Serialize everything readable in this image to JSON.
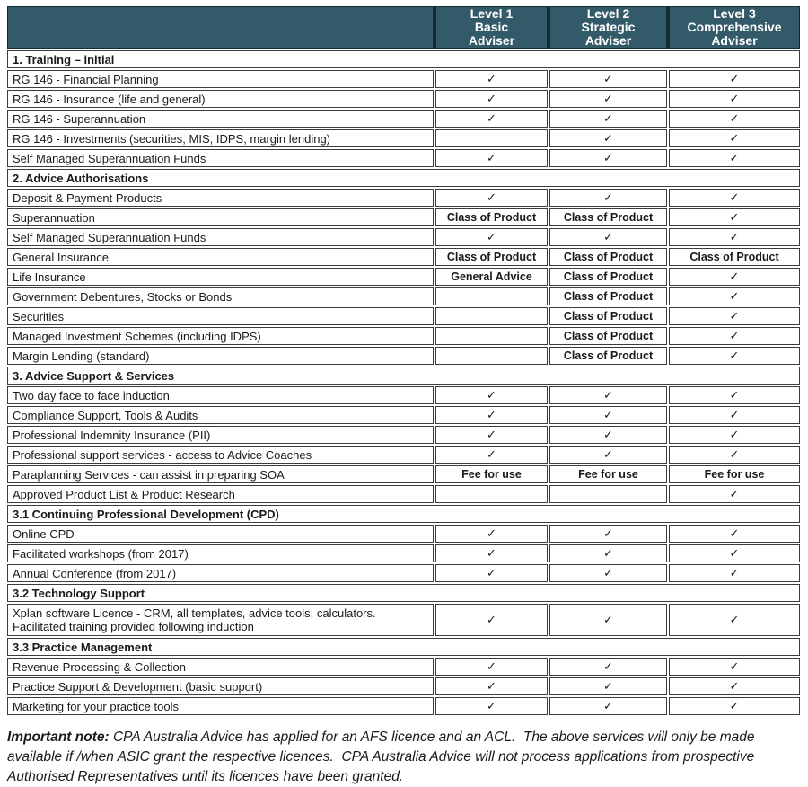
{
  "table": {
    "col_headers": [
      {
        "lines": [
          "Level 1",
          "Basic",
          "Adviser"
        ]
      },
      {
        "lines": [
          "Level 2",
          "Strategic",
          "Adviser"
        ]
      },
      {
        "lines": [
          "Level 3",
          "Comprehensive",
          "Adviser"
        ]
      }
    ],
    "check_symbol": "✓",
    "sections": [
      {
        "title": "1. Training – initial",
        "rows": [
          {
            "label": "RG 146 - Financial Planning",
            "values": [
              "✓",
              "✓",
              "✓"
            ]
          },
          {
            "label": "RG 146 - Insurance (life and general)",
            "values": [
              "✓",
              "✓",
              "✓"
            ]
          },
          {
            "label": "RG 146 - Superannuation",
            "values": [
              "✓",
              "✓",
              "✓"
            ]
          },
          {
            "label": "RG 146 - Investments (securities, MIS, IDPS, margin lending)",
            "values": [
              "",
              "✓",
              "✓"
            ]
          },
          {
            "label": "Self Managed Superannuation Funds",
            "values": [
              "✓",
              "✓",
              "✓"
            ]
          }
        ]
      },
      {
        "title": "2. Advice Authorisations",
        "rows": [
          {
            "label": "Deposit & Payment Products",
            "values": [
              "✓",
              "✓",
              "✓"
            ]
          },
          {
            "label": "Superannuation",
            "values": [
              "Class of Product",
              "Class of Product",
              "✓"
            ]
          },
          {
            "label": "Self Managed Superannuation Funds",
            "values": [
              "✓",
              "✓",
              "✓"
            ]
          },
          {
            "label": "General Insurance",
            "values": [
              "Class of Product",
              "Class of Product",
              "Class of Product"
            ]
          },
          {
            "label": "Life Insurance",
            "values": [
              "General Advice",
              "Class of Product",
              "✓"
            ]
          },
          {
            "label": "Government Debentures, Stocks or Bonds",
            "values": [
              "",
              "Class of Product",
              "✓"
            ]
          },
          {
            "label": "Securities",
            "values": [
              "",
              "Class of Product",
              "✓"
            ]
          },
          {
            "label": "Managed Investment Schemes (including IDPS)",
            "values": [
              "",
              "Class of Product",
              "✓"
            ]
          },
          {
            "label": "Margin Lending (standard)",
            "values": [
              "",
              "Class of Product",
              "✓"
            ]
          }
        ]
      },
      {
        "title": "3. Advice Support & Services",
        "rows": [
          {
            "label": "Two day face to face induction",
            "values": [
              "✓",
              "✓",
              "✓"
            ]
          },
          {
            "label": "Compliance Support, Tools & Audits",
            "values": [
              "✓",
              "✓",
              "✓"
            ]
          },
          {
            "label": "Professional Indemnity Insurance (PII)",
            "values": [
              "✓",
              "✓",
              "✓"
            ]
          },
          {
            "label": "Professional support services - access to Advice Coaches",
            "values": [
              "✓",
              "✓",
              "✓"
            ]
          },
          {
            "label": "Paraplanning Services - can assist in preparing SOA",
            "values": [
              "Fee for use",
              "Fee for use",
              "Fee for use"
            ]
          },
          {
            "label": "Approved Product List & Product Research",
            "values": [
              "",
              "",
              "✓"
            ]
          }
        ]
      },
      {
        "title": "3.1 Continuing Professional Development (CPD)",
        "rows": [
          {
            "label": "Online CPD",
            "values": [
              "✓",
              "✓",
              "✓"
            ]
          },
          {
            "label": "Facilitated workshops  (from 2017)",
            "values": [
              "✓",
              "✓",
              "✓"
            ]
          },
          {
            "label": "Annual Conference (from 2017)",
            "values": [
              "✓",
              "✓",
              "✓"
            ]
          }
        ]
      },
      {
        "title": "3.2 Technology Support",
        "rows": [
          {
            "label": "Xplan software Licence - CRM, all templates, advice tools, calculators.\nFacilitated training provided following induction",
            "values": [
              "✓",
              "✓",
              "✓"
            ],
            "tall": true
          }
        ]
      },
      {
        "title": "3.3 Practice Management",
        "rows": [
          {
            "label": "Revenue Processing & Collection",
            "values": [
              "✓",
              "✓",
              "✓"
            ]
          },
          {
            "label": "Practice Support & Development (basic support)",
            "values": [
              "✓",
              "✓",
              "✓"
            ]
          },
          {
            "label": "Marketing for your practice tools",
            "values": [
              "✓",
              "✓",
              "✓"
            ]
          }
        ]
      }
    ]
  },
  "footer": {
    "label": "Important note:",
    "text": " CPA Australia Advice has applied for an AFS licence and an ACL.  The above services will only be made available if /when ASIC grant the respective licences.  CPA Australia Advice will not process applications from prospective Authorised Representatives until its licences have been granted."
  },
  "colors": {
    "header_bg": "#335A68",
    "header_border": "#152B33",
    "header_text": "#FFFFFF",
    "cell_border": "#3C3C3C",
    "body_bg": "#FFFFFF"
  }
}
